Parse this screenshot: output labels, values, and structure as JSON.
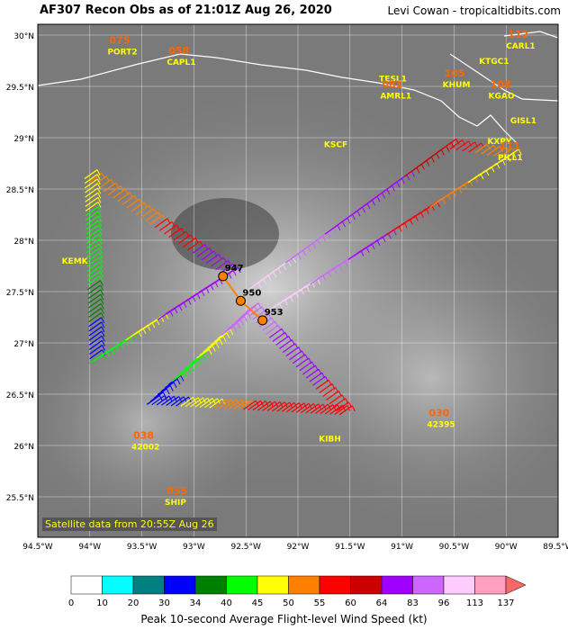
{
  "title": "AF307 Recon Obs as of 21:01Z Aug 26, 2020",
  "credit": "Levi Cowan - tropicaltidbits.com",
  "satellite_note": "Satellite data from 20:55Z Aug 26",
  "lat_labels": [
    "30°N",
    "29.5°N",
    "29°N",
    "28.5°N",
    "28°N",
    "27.5°N",
    "27°N",
    "26.5°N",
    "26°N",
    "25.5°N"
  ],
  "lon_labels": [
    "94.5°W",
    "94°W",
    "93.5°W",
    "93°W",
    "92.5°W",
    "92°W",
    "91.5°W",
    "91°W",
    "90.5°W",
    "90°W",
    "89.5°W"
  ],
  "pressure_obs": [
    {
      "lat": 27.65,
      "lon": -92.72,
      "label": "947"
    },
    {
      "lat": 27.41,
      "lon": -92.55,
      "label": "950"
    },
    {
      "lat": 27.22,
      "lon": -92.34,
      "label": "953"
    }
  ],
  "stations": [
    {
      "id": "PORT2",
      "lat": 29.81,
      "lon": -93.83,
      "value": "075"
    },
    {
      "id": "CAPL1",
      "lat": 29.71,
      "lon": -93.26,
      "value": "058"
    },
    {
      "id": "TESL1",
      "lat": 29.55,
      "lon": -91.22,
      "value": ""
    },
    {
      "id": "AMRL1",
      "lat": 29.38,
      "lon": -91.21,
      "value": "081"
    },
    {
      "id": "KHUM",
      "lat": 29.49,
      "lon": -90.61,
      "value": "105"
    },
    {
      "id": "CARL1",
      "lat": 29.87,
      "lon": -90.0,
      "value": "112"
    },
    {
      "id": "KTGC1",
      "lat": 29.72,
      "lon": -90.26,
      "value": ""
    },
    {
      "id": "KGAO",
      "lat": 29.38,
      "lon": -90.17,
      "value": "108"
    },
    {
      "id": "GISL1",
      "lat": 29.14,
      "lon": -89.96,
      "value": ""
    },
    {
      "id": "KXPY",
      "lat": 28.94,
      "lon": -90.18,
      "value": ""
    },
    {
      "id": "PILL1",
      "lat": 28.78,
      "lon": -90.08,
      "value": "111"
    },
    {
      "id": "KSCF",
      "lat": 28.91,
      "lon": -91.75,
      "value": ""
    },
    {
      "id": "KEMK",
      "lat": 27.77,
      "lon": -94.27,
      "value": ""
    },
    {
      "id": "42002",
      "lat": 25.96,
      "lon": -93.6,
      "value": "038"
    },
    {
      "id": "KIBH",
      "lat": 26.04,
      "lon": -91.8,
      "value": ""
    },
    {
      "id": "42395",
      "lat": 26.18,
      "lon": -90.76,
      "value": "030"
    },
    {
      "id": "SHIP",
      "lat": 25.42,
      "lon": -93.28,
      "value": "055"
    }
  ],
  "colorbar": {
    "title": "Peak 10-second Average Flight-level Wind Speed (kt)",
    "ticks": [
      "0",
      "10",
      "20",
      "30",
      "34",
      "40",
      "45",
      "50",
      "55",
      "60",
      "64",
      "83",
      "96",
      "113",
      "137"
    ],
    "colors": [
      "#ffffff",
      "#00ffff",
      "#008080",
      "#0000ff",
      "#008000",
      "#00ff00",
      "#ffff00",
      "#ff8000",
      "#ff0000",
      "#cc0000",
      "#a000ff",
      "#cc66ff",
      "#ffccff",
      "#ffa0c0",
      "#ff6666"
    ]
  },
  "colors": {
    "pressure_text": "#000000",
    "station_value": "#ff6600",
    "station_id": "#ffff00"
  }
}
